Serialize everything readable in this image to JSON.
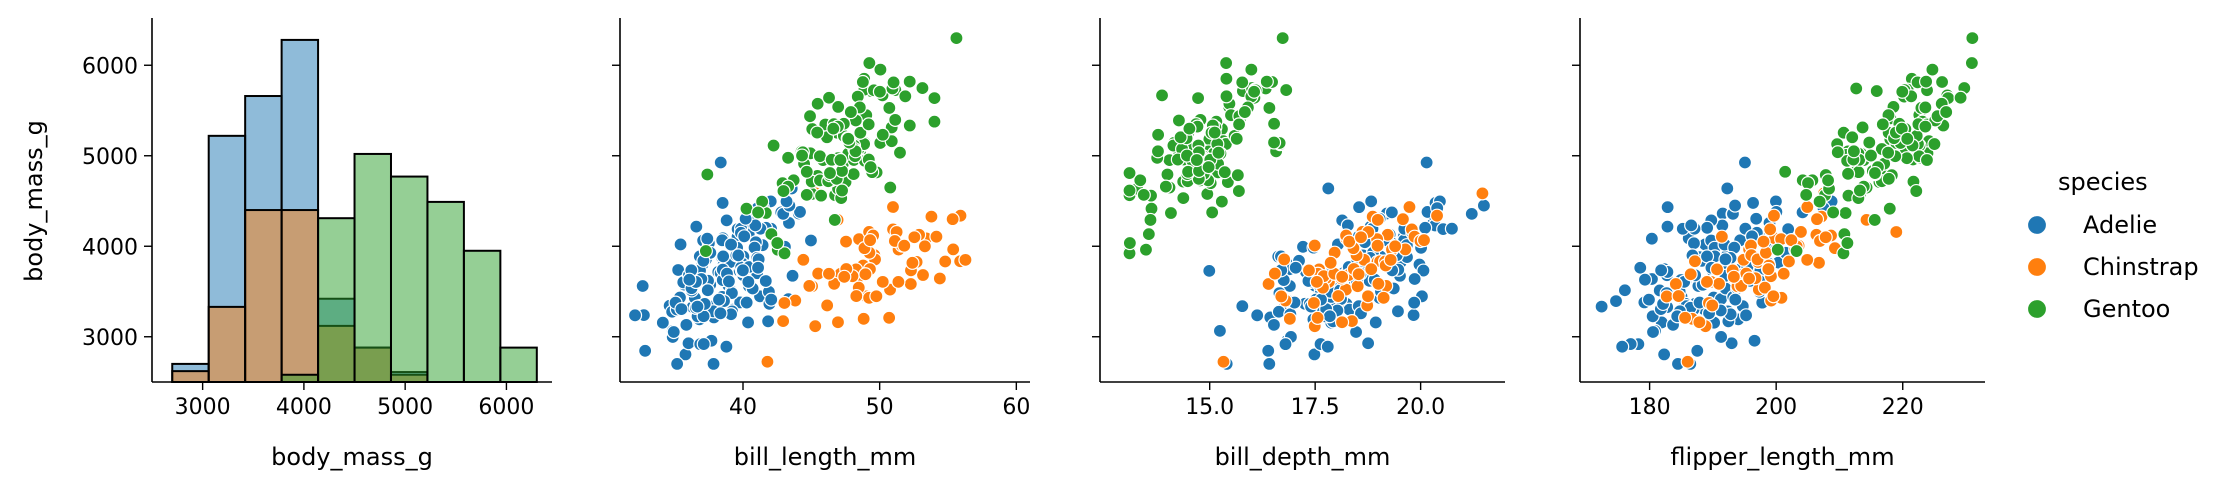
{
  "legend": {
    "title": "species",
    "items": [
      "Adelie",
      "Chinstrap",
      "Gentoo"
    ],
    "placement": "right"
  },
  "colors": {
    "Adelie": "#1f77b4",
    "Chinstrap": "#ff7f0e",
    "Gentoo": "#2ca02c",
    "axis": "#000000",
    "marker_edge": "#ffffff",
    "bar_edge": "#000000"
  },
  "chart_data": [
    {
      "type": "bar",
      "subtype": "histogram",
      "xlabel": "body_mass_g",
      "ylabel": "body_mass_g",
      "xlim": [
        2500,
        6450
      ],
      "ylim": [
        2500,
        6500
      ],
      "xticks": [
        3000,
        4000,
        5000,
        6000
      ],
      "yticks": [
        3000,
        4000,
        5000,
        6000
      ],
      "bin_edges": [
        2700,
        3060,
        3420,
        3780,
        4140,
        4500,
        4860,
        5220,
        5580,
        5940,
        6300
      ],
      "series": [
        {
          "name": "Adelie",
          "values": [
            2700,
            5220,
            5660,
            6280,
            3420,
            2880,
            2610,
            2500,
            2500,
            2500
          ]
        },
        {
          "name": "Chinstrap",
          "values": [
            2620,
            3330,
            4400,
            4400,
            3120,
            2880,
            2580,
            2500,
            2500,
            2500
          ]
        },
        {
          "name": "Gentoo",
          "values": [
            2500,
            2500,
            2500,
            2580,
            4310,
            5020,
            4770,
            4490,
            3950,
            2880
          ]
        }
      ],
      "grid": false
    },
    {
      "type": "scatter",
      "xlabel": "bill_length_mm",
      "ylabel": "",
      "xlim": [
        31,
        61
      ],
      "ylim": [
        2500,
        6500
      ],
      "xticks": [
        40,
        50,
        60
      ],
      "yticks": [
        3000,
        4000,
        5000,
        6000
      ],
      "x_field": "bill_length_mm",
      "grid": false
    },
    {
      "type": "scatter",
      "xlabel": "bill_depth_mm",
      "ylabel": "",
      "xlim": [
        12.4,
        22.0
      ],
      "ylim": [
        2500,
        6500
      ],
      "xticks": [
        15.0,
        17.5,
        20.0
      ],
      "xticklabels": [
        "15.0",
        "17.5",
        "20.0"
      ],
      "yticks": [
        3000,
        4000,
        5000,
        6000
      ],
      "x_field": "bill_depth_mm",
      "grid": false
    },
    {
      "type": "scatter",
      "xlabel": "flipper_length_mm",
      "ylabel": "",
      "xlim": [
        169,
        233
      ],
      "ylim": [
        2500,
        6500
      ],
      "xticks": [
        180,
        200,
        220
      ],
      "yticks": [
        3000,
        4000,
        5000,
        6000
      ],
      "x_field": "flipper_length_mm",
      "grid": false
    }
  ]
}
